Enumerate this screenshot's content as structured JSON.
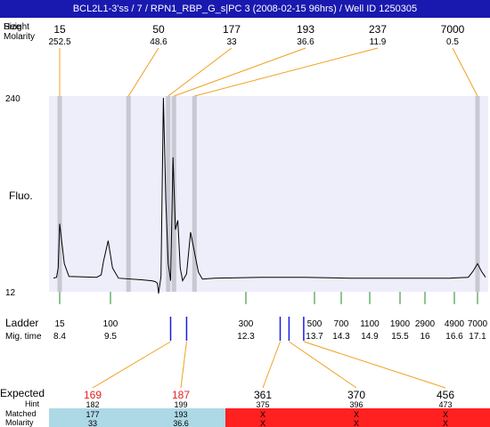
{
  "title": "BCL2L1-3'ss / 7 / RPN1_RBP_G_s|PC 3 (2008-02-15 96hrs) / Well ID 1250305",
  "colors": {
    "title_bg": "#1919b0",
    "plot_bg": "#eeeefb",
    "peak_marker": "#c8c8d2",
    "callout_line": "#f0a020",
    "ladder_tick": "#228b22",
    "migration_marker": "#1a1ae6",
    "expected_highlight": "#e52020",
    "matched_bg": "#add8e6",
    "unmatched_bg": "#ff2020"
  },
  "top_labels": {
    "size": "Size",
    "molarity": "Molarity",
    "overlap_text": "Height"
  },
  "y_labels": {
    "top": "240",
    "bottom": "12",
    "axis": "Fluo."
  },
  "ladder_labels": {
    "ladder": "Ladder",
    "mig_time": "Mig. time"
  },
  "row_labels": {
    "expected": "Expected",
    "hint": "Hint",
    "matched": "Matched",
    "molarity": "Molarity"
  },
  "chart_data": {
    "type": "line",
    "xlabel": "Mig. time",
    "ylabel": "Fluo.",
    "ylim": [
      12,
      240
    ],
    "grid": false,
    "peaks": [
      {
        "size": "15",
        "molarity": "252.5",
        "time": 8.4
      },
      {
        "size": "50",
        "molarity": "48.6",
        "time": 9.95
      },
      {
        "size": "177",
        "molarity": "33",
        "time": 11.2
      },
      {
        "size": "193",
        "molarity": "36.6",
        "time": 11.32
      },
      {
        "size": "237",
        "molarity": "11.9",
        "time": 11.65
      },
      {
        "size": "7000",
        "molarity": "0.5",
        "time": 17.1
      }
    ],
    "trace": [
      [
        8.0,
        28
      ],
      [
        8.2,
        29
      ],
      [
        8.3,
        40
      ],
      [
        8.4,
        92
      ],
      [
        8.5,
        45
      ],
      [
        8.6,
        30
      ],
      [
        9.2,
        29
      ],
      [
        9.3,
        32
      ],
      [
        9.35,
        48
      ],
      [
        9.45,
        72
      ],
      [
        9.55,
        40
      ],
      [
        9.7,
        28
      ],
      [
        10.3,
        26
      ],
      [
        10.7,
        25
      ],
      [
        10.85,
        24
      ],
      [
        10.95,
        22
      ],
      [
        11.0,
        10
      ],
      [
        11.05,
        30
      ],
      [
        11.1,
        240
      ],
      [
        11.15,
        120
      ],
      [
        11.2,
        45
      ],
      [
        11.25,
        25
      ],
      [
        11.3,
        170
      ],
      [
        11.35,
        85
      ],
      [
        11.4,
        96
      ],
      [
        11.45,
        40
      ],
      [
        11.5,
        25
      ],
      [
        11.55,
        33
      ],
      [
        11.6,
        82
      ],
      [
        11.7,
        35
      ],
      [
        11.75,
        27
      ],
      [
        11.9,
        28
      ],
      [
        12.6,
        29
      ],
      [
        13.5,
        29
      ],
      [
        14.5,
        28
      ],
      [
        15.5,
        28
      ],
      [
        16.5,
        28
      ],
      [
        16.9,
        29
      ],
      [
        17.0,
        36
      ],
      [
        17.1,
        45
      ],
      [
        17.2,
        36
      ],
      [
        17.3,
        29
      ]
    ],
    "ladder": [
      {
        "size": "15",
        "time": "8.4"
      },
      {
        "size": "100",
        "time": "9.5"
      },
      {
        "size": "300",
        "time": "12.3"
      },
      {
        "size": "500",
        "time": "13.7"
      },
      {
        "size": "700",
        "time": "14.3"
      },
      {
        "size": "1100",
        "time": "14.9"
      },
      {
        "size": "1900",
        "time": "15.5"
      },
      {
        "size": "2900",
        "time": "16"
      },
      {
        "size": "4900",
        "time": "16.6"
      },
      {
        "size": "7000",
        "time": "17.1"
      }
    ],
    "migration_markers": [
      {
        "time": 11.25,
        "target": 0
      },
      {
        "time": 11.55,
        "target": 1
      },
      {
        "time": 13.0,
        "target": 2
      },
      {
        "time": 13.18,
        "target": 3
      },
      {
        "time": 13.48,
        "target": 4
      }
    ],
    "expected": [
      {
        "expected": "169",
        "hint": "182",
        "matched": "177",
        "molarity": "33",
        "highlight": true,
        "status": "matched"
      },
      {
        "expected": "187",
        "hint": "199",
        "matched": "193",
        "molarity": "36.6",
        "highlight": true,
        "status": "matched"
      },
      {
        "expected": "361",
        "hint": "375",
        "matched": "X",
        "molarity": "X",
        "highlight": false,
        "status": "unmatched"
      },
      {
        "expected": "370",
        "hint": "396",
        "matched": "X",
        "molarity": "X",
        "highlight": false,
        "status": "unmatched"
      },
      {
        "expected": "456",
        "hint": "473",
        "matched": "X",
        "molarity": "X",
        "highlight": false,
        "status": "unmatched"
      }
    ]
  }
}
